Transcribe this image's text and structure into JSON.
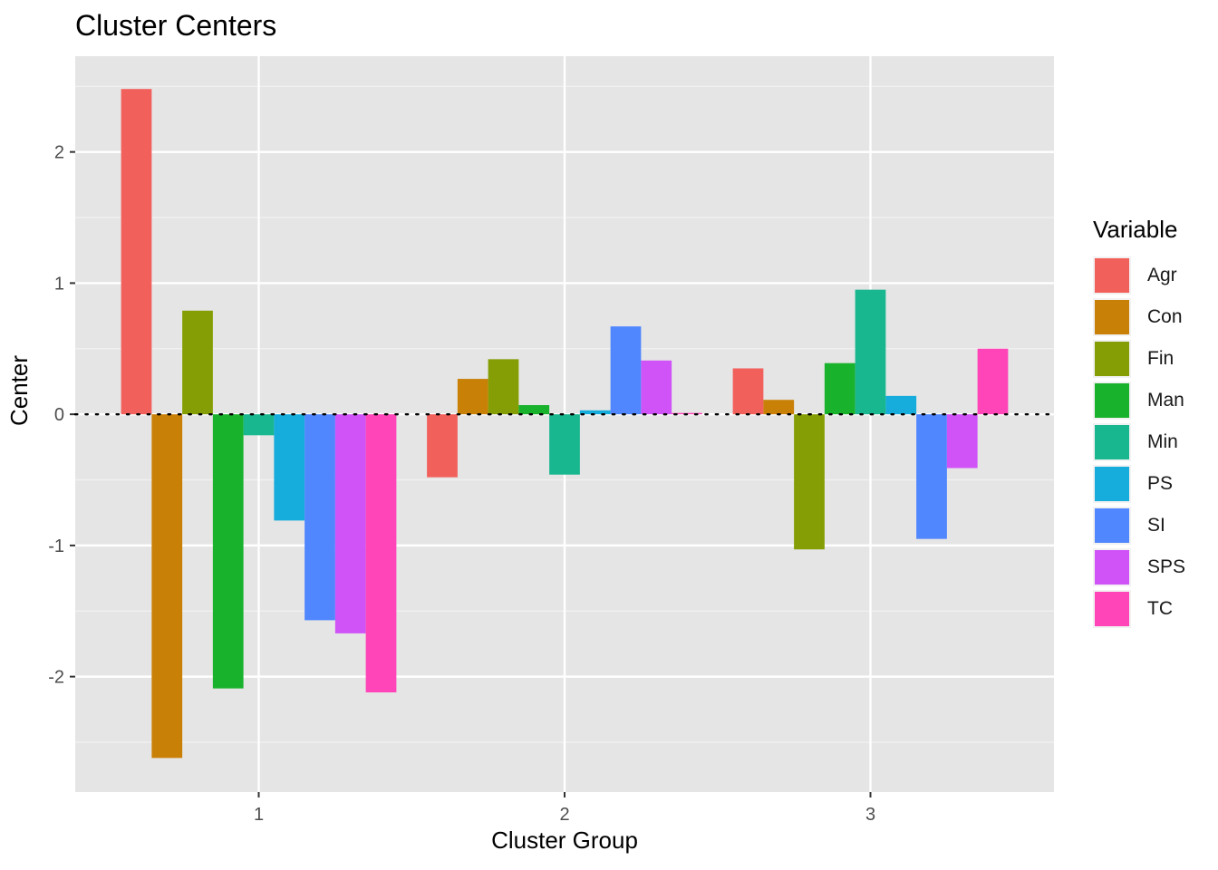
{
  "chart_data": {
    "type": "bar",
    "title": "Cluster Centers",
    "xlabel": "Cluster Group",
    "ylabel": "Center",
    "categories": [
      "1",
      "2",
      "3"
    ],
    "yticks": [
      -2,
      -1,
      0,
      1,
      2
    ],
    "ylim": [
      -2.88,
      2.73
    ],
    "grid": true,
    "reference_line": {
      "y": 0,
      "style": "dotted"
    },
    "legend": {
      "title": "Variable",
      "position": "right"
    },
    "series": [
      {
        "name": "Agr",
        "color": "#F8766D",
        "values": [
          2.48,
          -0.48,
          0.35
        ]
      },
      {
        "name": "Con",
        "color": "#CD9600",
        "values": [
          -2.62,
          0.27,
          0.11
        ]
      },
      {
        "name": "Fin",
        "color": "#7CAE00",
        "values": [
          0.79,
          0.42,
          -1.03
        ]
      },
      {
        "name": "Man",
        "color": "#00BE67",
        "values": [
          -2.09,
          0.07,
          0.39
        ]
      },
      {
        "name": "Min",
        "color": "#00BFC4",
        "values": [
          -0.16,
          -0.46,
          0.95
        ]
      },
      {
        "name": "PS",
        "color": "#00A9FF",
        "values": [
          -0.81,
          0.03,
          0.14
        ]
      },
      {
        "name": "SI",
        "color": "#619CFF",
        "values": [
          -1.57,
          0.67,
          -0.95
        ]
      },
      {
        "name": "SPS",
        "color": "#C77CFF",
        "values": [
          -1.67,
          0.41,
          -0.41
        ]
      },
      {
        "name": "TC",
        "color": "#FF61C3",
        "values": [
          -2.12,
          0.01,
          0.5
        ]
      }
    ],
    "display_colors": [
      "#F2605C",
      "#C98007",
      "#859E05",
      "#19B22D",
      "#19B78F",
      "#16ACDB",
      "#5087FF",
      "#CF53F7",
      "#FF45B8"
    ]
  }
}
